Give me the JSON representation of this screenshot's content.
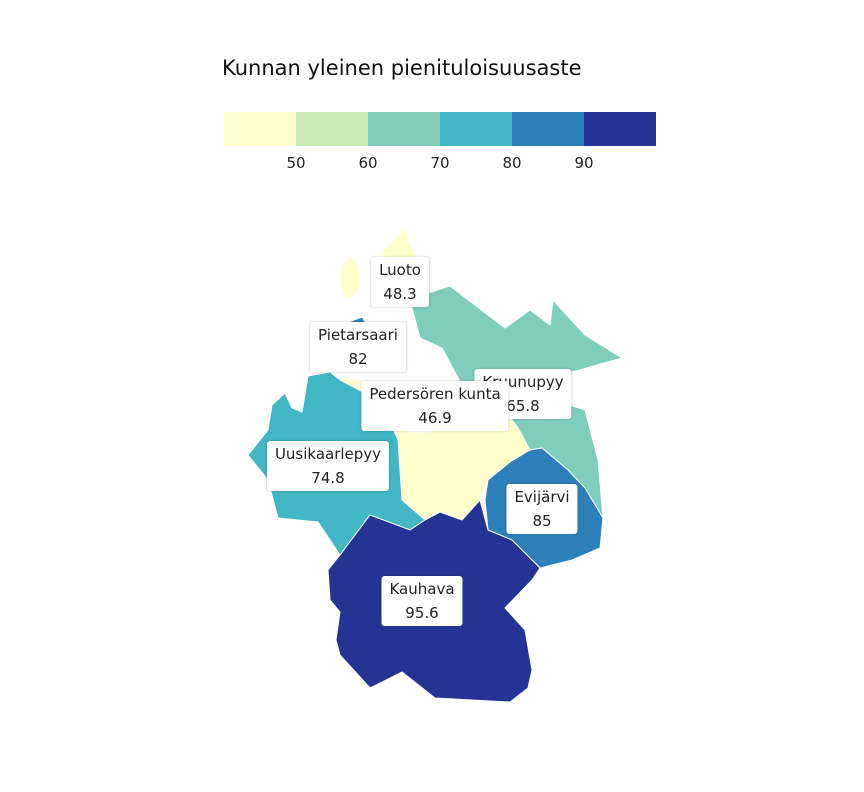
{
  "legend": {
    "title": "Kunnan yleinen pienituloisuusaste",
    "colors": [
      "#ffffcc",
      "#c7e9b4",
      "#7fcdbb",
      "#41b6c4",
      "#2c7fb8",
      "#253494"
    ],
    "ticks": [
      "50",
      "60",
      "70",
      "80",
      "90"
    ]
  },
  "municipalities": [
    {
      "name": "Luoto",
      "value": "48.3",
      "color": "#ffffcc"
    },
    {
      "name": "Pietarsaari",
      "value": "82",
      "color": "#2c7fb8"
    },
    {
      "name": "Pedersören kunta",
      "value": "46.9",
      "color": "#ffffcc"
    },
    {
      "name": "Kruunupyy",
      "value": "65.8",
      "color": "#7fcdbb"
    },
    {
      "name": "Uusikaarlepyy",
      "value": "74.8",
      "color": "#41b6c4"
    },
    {
      "name": "Evijärvi",
      "value": "85",
      "color": "#2c7fb8"
    },
    {
      "name": "Kauhava",
      "value": "95.6",
      "color": "#253494"
    }
  ]
}
